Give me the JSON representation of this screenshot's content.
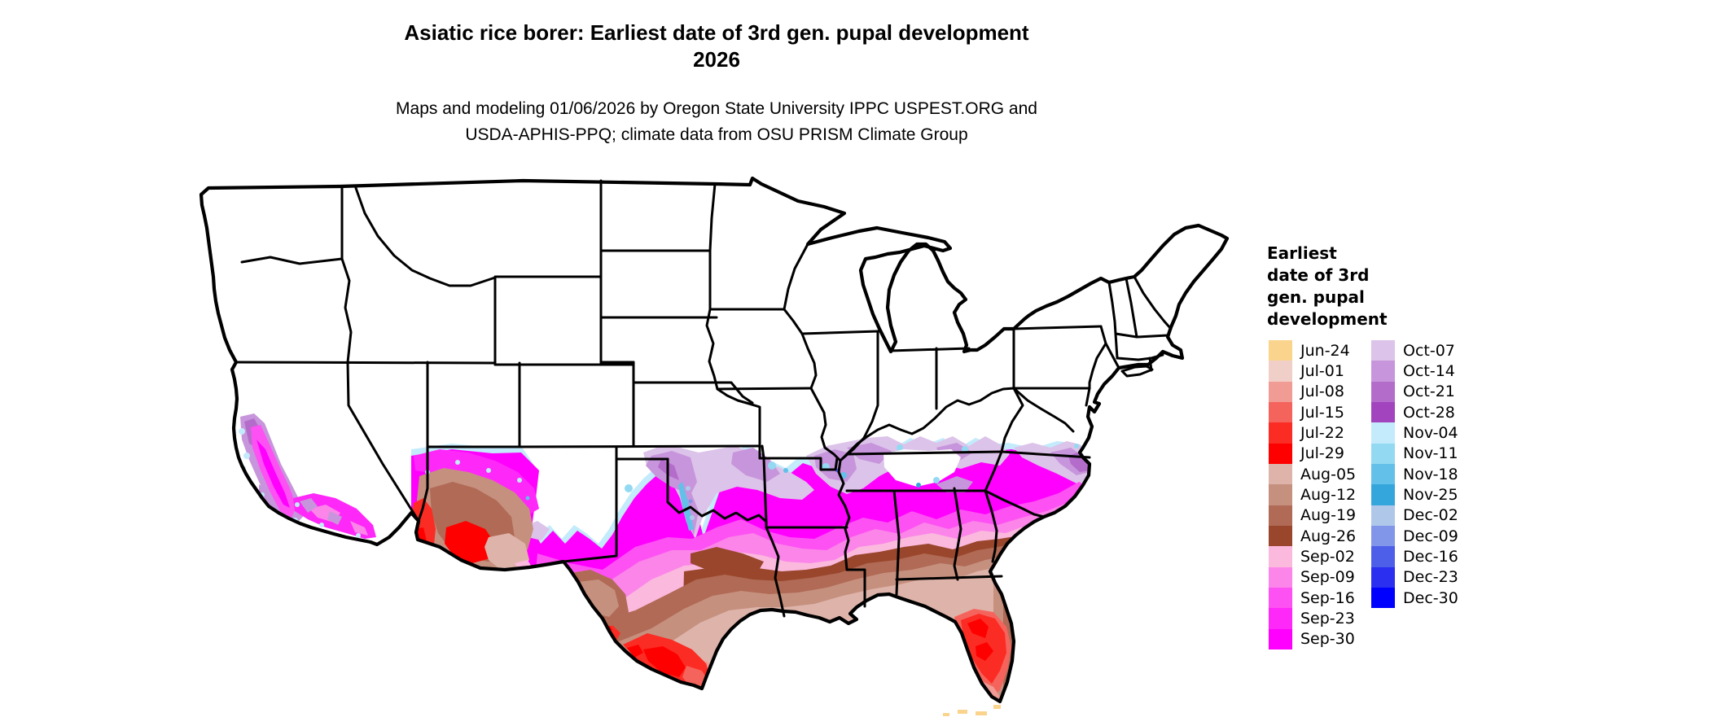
{
  "title": {
    "line1": "Asiatic rice borer: Earliest date of 3rd gen. pupal development",
    "line2": "2026"
  },
  "subtitle": {
    "line1": "Maps and modeling 01/06/2026 by Oregon State University IPPC USPEST.ORG and",
    "line2": "USDA-APHIS-PPQ; climate data from OSU PRISM Climate Group"
  },
  "legend": {
    "title_lines": [
      "Earliest",
      "date of 3rd",
      "gen. pupal",
      "development"
    ],
    "columns": [
      {
        "entries": [
          {
            "key": "jun24",
            "label": "Jun-24",
            "color": "#FAD48C"
          },
          {
            "key": "jul01",
            "label": "Jul-01",
            "color": "#F1CFC9"
          },
          {
            "key": "jul08",
            "label": "Jul-08",
            "color": "#F09B94"
          },
          {
            "key": "jul15",
            "label": "Jul-15",
            "color": "#F5645C"
          },
          {
            "key": "jul22",
            "label": "Jul-22",
            "color": "#FA2C24"
          },
          {
            "key": "jul29",
            "label": "Jul-29",
            "color": "#FF0000"
          },
          {
            "key": "aug05",
            "label": "Aug-05",
            "color": "#DEB4AA"
          },
          {
            "key": "aug12",
            "label": "Aug-12",
            "color": "#C6907F"
          },
          {
            "key": "aug19",
            "label": "Aug-19",
            "color": "#B06A55"
          },
          {
            "key": "aug26",
            "label": "Aug-26",
            "color": "#99462C"
          },
          {
            "key": "sep02",
            "label": "Sep-02",
            "color": "#FBB9DE"
          },
          {
            "key": "sep09",
            "label": "Sep-09",
            "color": "#FC85E9"
          },
          {
            "key": "sep16",
            "label": "Sep-16",
            "color": "#FE51F3"
          },
          {
            "key": "sep23",
            "label": "Sep-23",
            "color": "#FE28F8"
          },
          {
            "key": "sep30",
            "label": "Sep-30",
            "color": "#FF00FE"
          }
        ]
      },
      {
        "entries": [
          {
            "key": "oct07",
            "label": "Oct-07",
            "color": "#DCC3E9"
          },
          {
            "key": "oct14",
            "label": "Oct-14",
            "color": "#C795DB"
          },
          {
            "key": "oct21",
            "label": "Oct-21",
            "color": "#B46CCB"
          },
          {
            "key": "oct28",
            "label": "Oct-28",
            "color": "#A244BD"
          },
          {
            "key": "nov04",
            "label": "Nov-04",
            "color": "#C3EBFB"
          },
          {
            "key": "nov11",
            "label": "Nov-11",
            "color": "#93D9F2"
          },
          {
            "key": "nov18",
            "label": "Nov-18",
            "color": "#63C0E9"
          },
          {
            "key": "nov25",
            "label": "Nov-25",
            "color": "#35A6DC"
          },
          {
            "key": "dec02",
            "label": "Dec-02",
            "color": "#AFC8EA"
          },
          {
            "key": "dec09",
            "label": "Dec-09",
            "color": "#8195E9"
          },
          {
            "key": "dec16",
            "label": "Dec-16",
            "color": "#4D5FE9"
          },
          {
            "key": "dec23",
            "label": "Dec-23",
            "color": "#2A2FF0"
          },
          {
            "key": "dec30",
            "label": "Dec-30",
            "color": "#0000FE"
          }
        ]
      }
    ]
  },
  "chart_data": {
    "type": "heatmap",
    "subtype": "choropleth-date-map",
    "title": "Asiatic rice borer: Earliest date of 3rd gen. pupal development 2026",
    "legend_title": "Earliest date of 3rd gen. pupal development",
    "legend_position": "right",
    "categories": [
      "Jun-24",
      "Jul-01",
      "Jul-08",
      "Jul-15",
      "Jul-22",
      "Jul-29",
      "Aug-05",
      "Aug-12",
      "Aug-19",
      "Aug-26",
      "Sep-02",
      "Sep-09",
      "Sep-16",
      "Sep-23",
      "Sep-30",
      "Oct-07",
      "Oct-14",
      "Oct-21",
      "Oct-28",
      "Nov-04",
      "Nov-11",
      "Nov-18",
      "Nov-25",
      "Dec-02",
      "Dec-09",
      "Dec-16",
      "Dec-23",
      "Dec-30"
    ],
    "colors": [
      "#FAD48C",
      "#F1CFC9",
      "#F09B94",
      "#F5645C",
      "#FA2C24",
      "#FF0000",
      "#DEB4AA",
      "#C6907F",
      "#B06A55",
      "#99462C",
      "#FBB9DE",
      "#FC85E9",
      "#FE51F3",
      "#FE28F8",
      "#FF00FE",
      "#DCC3E9",
      "#C795DB",
      "#B46CCB",
      "#A244BD",
      "#C3EBFB",
      "#93D9F2",
      "#63C0E9",
      "#35A6DC",
      "#AFC8EA",
      "#8195E9",
      "#4D5FE9",
      "#2A2FF0",
      "#0000FE"
    ],
    "region_pattern": "Contiguous US map; northern states uncolored (development not reached). Bands run earliest (Jun/Jul reds-oranges) in far south Texas, southern Florida and SW Arizona deserts, through Aug browns along the Gulf Coast, Sep pinks/magentas across the mid-South and Atlantic coastal plain and California Central Valley, to Oct purples and Nov-Dec blues at the northern fringe of the colored zone."
  }
}
